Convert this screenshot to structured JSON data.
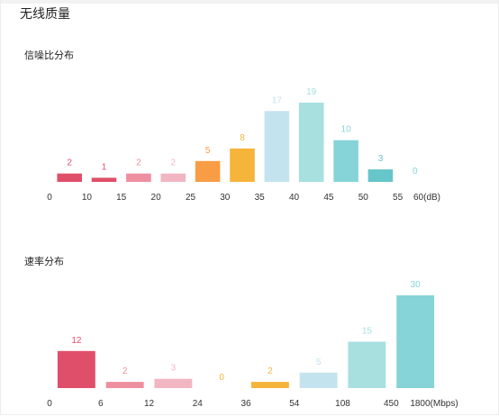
{
  "panel": {
    "title": "无线质量"
  },
  "chart_data": [
    {
      "type": "bar",
      "title": "信噪比分布",
      "tick_labels": [
        "0",
        "10",
        "15",
        "20",
        "25",
        "30",
        "35",
        "40",
        "45",
        "50",
        "55",
        "60(dB)"
      ],
      "values": [
        2,
        1,
        2,
        2,
        5,
        8,
        17,
        19,
        10,
        3,
        0
      ],
      "ylim": [
        0,
        19
      ],
      "colors": [
        "#e04f6a",
        "#e04f6a",
        "#ee8fa0",
        "#f2b6c3",
        "#f89d45",
        "#f5b43a",
        "#c3e4ef",
        "#a7e0df",
        "#86d4d8",
        "#66c6c9",
        "#86d4d8"
      ]
    },
    {
      "type": "bar",
      "title": "速率分布",
      "tick_labels": [
        "0",
        "6",
        "12",
        "24",
        "36",
        "54",
        "108",
        "450",
        "1800(Mbps)"
      ],
      "values": [
        12,
        2,
        3,
        0,
        2,
        5,
        15,
        30
      ],
      "ylim": [
        0,
        30
      ],
      "colors": [
        "#e04f6a",
        "#ee8fa0",
        "#f2b6c3",
        "#f5b43a",
        "#f5b43a",
        "#c3e4ef",
        "#a7e0df",
        "#86d4d8"
      ]
    }
  ]
}
